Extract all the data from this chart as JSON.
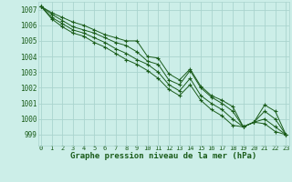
{
  "background_color": "#cceee8",
  "grid_color": "#aad4ce",
  "line_color": "#1a5c1a",
  "xlabel": "Graphe pression niveau de la mer (hPa)",
  "xlabel_fontsize": 6.5,
  "ylabel_ticks": [
    999,
    1000,
    1001,
    1002,
    1003,
    1004,
    1005,
    1006,
    1007
  ],
  "xlim": [
    -0.3,
    23.3
  ],
  "ylim": [
    998.3,
    1007.5
  ],
  "xtick_labels": [
    "0",
    "1",
    "2",
    "3",
    "4",
    "5",
    "6",
    "7",
    "8",
    "9",
    "10",
    "11",
    "12",
    "13",
    "14",
    "15",
    "16",
    "17",
    "18",
    "19",
    "20",
    "21",
    "22",
    "23"
  ],
  "series": [
    [
      1007.2,
      1006.8,
      1006.5,
      1006.2,
      1006.0,
      1005.7,
      1005.4,
      1005.2,
      1005.0,
      1005.0,
      1004.0,
      1003.9,
      1002.9,
      1002.5,
      1003.2,
      1002.1,
      1001.5,
      1001.2,
      1000.8,
      999.5,
      999.8,
      1000.9,
      1000.5,
      999.0
    ],
    [
      1007.2,
      1006.7,
      1006.3,
      1005.9,
      1005.7,
      1005.5,
      1005.2,
      1004.9,
      1004.7,
      1004.3,
      1003.7,
      1003.5,
      1002.5,
      1002.2,
      1003.1,
      1002.0,
      1001.4,
      1001.0,
      1000.5,
      999.5,
      999.8,
      1000.5,
      1000.0,
      999.0
    ],
    [
      1007.2,
      1006.5,
      1006.1,
      1005.7,
      1005.5,
      1005.2,
      1004.9,
      1004.5,
      1004.2,
      1003.8,
      1003.5,
      1003.0,
      1002.2,
      1001.8,
      1002.6,
      1001.5,
      1001.0,
      1000.6,
      1000.0,
      999.5,
      999.8,
      1000.0,
      999.5,
      999.0
    ],
    [
      1007.2,
      1006.4,
      1005.9,
      1005.5,
      1005.3,
      1004.9,
      1004.6,
      1004.2,
      1003.8,
      1003.5,
      1003.1,
      1002.6,
      1001.9,
      1001.5,
      1002.2,
      1001.2,
      1000.6,
      1000.2,
      999.6,
      999.5,
      999.8,
      999.7,
      999.2,
      999.0
    ]
  ]
}
